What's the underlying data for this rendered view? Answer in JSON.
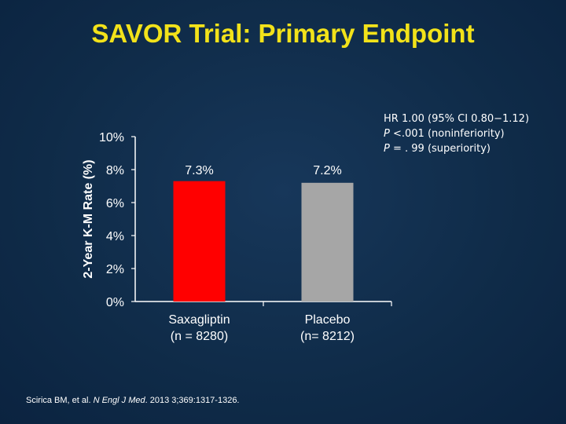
{
  "slide": {
    "title": "SAVOR Trial: Primary Endpoint",
    "stats": {
      "line1": "HR 1.00 (95% CI 0.80−1.12)",
      "line2_p": "P",
      "line2_rest": " <.001 (noninferiority)",
      "line3_p": "P",
      "line3_rest": " = . 99 (superiority)"
    },
    "citation": {
      "authors": "Scirica BM, et al. ",
      "journal": "N Engl J Med",
      "rest": ". 2013 3;369:1317-1326."
    }
  },
  "colors": {
    "background": "#0f2b48",
    "title": "#f2e21a",
    "saxagliptin_bar": "#ff0000",
    "placebo_bar": "#a6a6a6",
    "axis": "#ffffff"
  },
  "chart_data": {
    "type": "bar",
    "ylabel": "2-Year K-M Rate (%)",
    "ylim": [
      0,
      10
    ],
    "yticks": [
      "0%",
      "2%",
      "4%",
      "6%",
      "8%",
      "10%"
    ],
    "categories": [
      {
        "line1": "Saxagliptin",
        "line2": "(n = 8280)"
      },
      {
        "line1": "Placebo",
        "line2": "(n= 8212)"
      }
    ],
    "values": [
      7.3,
      7.2
    ],
    "data_labels": [
      "7.3%",
      "7.2%"
    ],
    "grid": false
  }
}
